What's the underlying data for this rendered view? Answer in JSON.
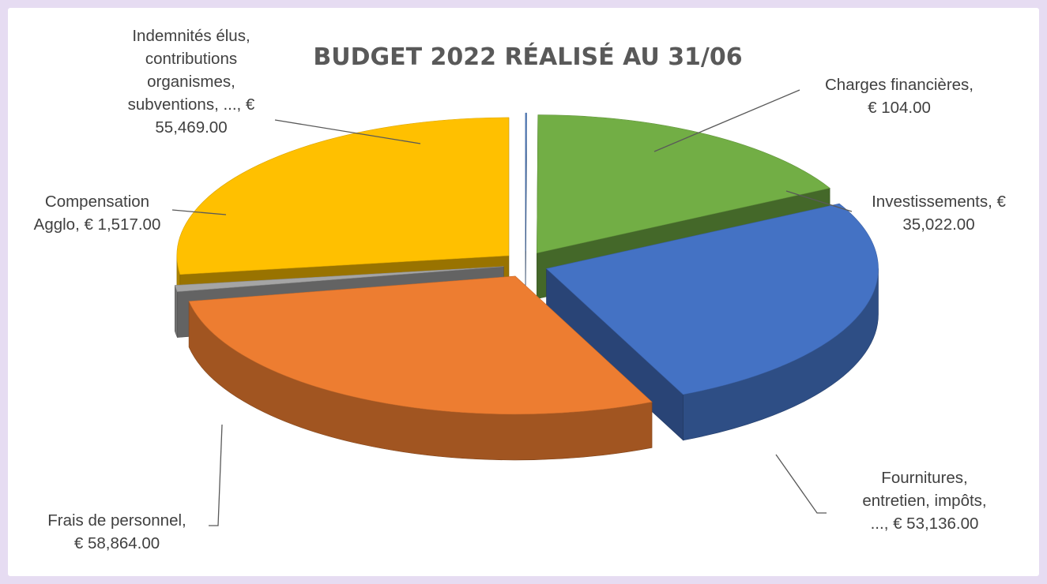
{
  "chart_data": {
    "type": "pie",
    "style": "3d-exploded",
    "title": "BUDGET 2022 RÉALISÉ AU 31/06",
    "legend": "none",
    "currency": "€",
    "slices": [
      {
        "name": "Charges financières",
        "value": 104.0,
        "color": "#4e7ec4",
        "label_lines": [
          "Charges financières,",
          "€ 104.00"
        ]
      },
      {
        "name": "Investissements",
        "value": 35022.0,
        "color": "#72ae45",
        "label_lines": [
          "Investissements,  €",
          "35,022.00"
        ]
      },
      {
        "name": "Fournitures, entretien, impôts, ...",
        "value": 53136.0,
        "color": "#4472c4",
        "label_lines": [
          "Fournitures,",
          "entretien, impôts,",
          "..., € 53,136.00"
        ]
      },
      {
        "name": "Frais de personnel",
        "value": 58864.0,
        "color": "#ed7d31",
        "label_lines": [
          "Frais de personnel,",
          "€ 58,864.00"
        ]
      },
      {
        "name": "Compensation Agglo",
        "value": 1517.0,
        "color": "#a5a5a5",
        "label_lines": [
          "Compensation",
          "Agglo,  € 1,517.00"
        ]
      },
      {
        "name": "Indemnités élus, contributions organismes, subventions, ...",
        "value": 55469.0,
        "color": "#ffc000",
        "label_lines": [
          "Indemnités élus,",
          "contributions",
          "organismes,",
          "subventions, ...,  €",
          "55,469.00"
        ]
      }
    ]
  }
}
